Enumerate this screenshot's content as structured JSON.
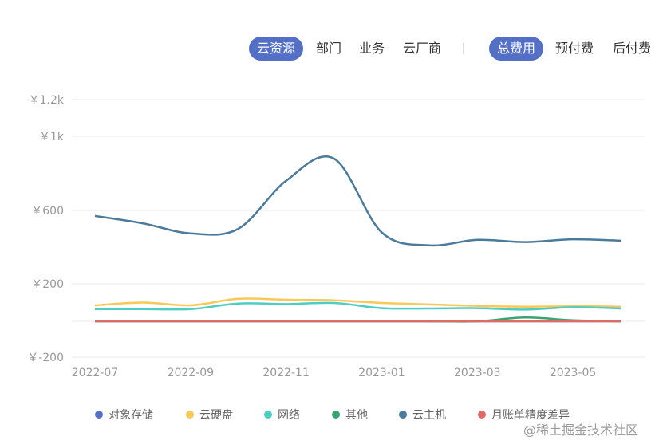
{
  "filters": {
    "dimension": [
      {
        "label": "云资源",
        "active": true
      },
      {
        "label": "部门",
        "active": false
      },
      {
        "label": "业务",
        "active": false
      },
      {
        "label": "云厂商",
        "active": false
      }
    ],
    "fee_type": [
      {
        "label": "总费用",
        "active": true
      },
      {
        "label": "预付费",
        "active": false
      },
      {
        "label": "后付费",
        "active": false
      }
    ]
  },
  "colors": {
    "accent": "#5470c6"
  },
  "chart_data": {
    "type": "line",
    "smooth": true,
    "grid": true,
    "legend_position": "bottom",
    "y_ticks": [
      "￥-200",
      "￥200",
      "￥600",
      "￥1k",
      "￥1.2k"
    ],
    "y_tick_values": [
      -200,
      200,
      600,
      1000,
      1200
    ],
    "ylim": [
      -200,
      1200
    ],
    "x": [
      "2022-07",
      "2022-08",
      "2022-09",
      "2022-10",
      "2022-11",
      "2022-12",
      "2023-01",
      "2023-02",
      "2023-03",
      "2023-04",
      "2023-05",
      "2023-06"
    ],
    "x_tick_labels": [
      "2022-07",
      "2022-09",
      "2022-11",
      "2023-01",
      "2023-03",
      "2023-05"
    ],
    "series": [
      {
        "name": "对象存储",
        "color": "#5470c6",
        "values": [
          0,
          0,
          0,
          0,
          0,
          0,
          0,
          0,
          0,
          0,
          0,
          0
        ]
      },
      {
        "name": "云硬盘",
        "color": "#fac858",
        "values": [
          85,
          100,
          85,
          120,
          115,
          112,
          98,
          90,
          82,
          78,
          80,
          78
        ]
      },
      {
        "name": "网络",
        "color": "#4ecdc4",
        "values": [
          65,
          65,
          65,
          95,
          92,
          98,
          70,
          68,
          70,
          62,
          75,
          68
        ]
      },
      {
        "name": "其他",
        "color": "#3ba272",
        "values": [
          0,
          0,
          0,
          0,
          0,
          0,
          0,
          0,
          0,
          20,
          5,
          0
        ]
      },
      {
        "name": "云主机",
        "color": "#4a7a9c",
        "values": [
          570,
          530,
          475,
          500,
          760,
          880,
          480,
          410,
          440,
          428,
          443,
          435
        ]
      },
      {
        "name": "月账单精度差异",
        "color": "#dd6b66",
        "values": [
          0,
          0,
          0,
          0,
          0,
          0,
          0,
          0,
          0,
          0,
          0,
          0
        ]
      }
    ]
  },
  "watermark": "@稀土掘金技术社区"
}
